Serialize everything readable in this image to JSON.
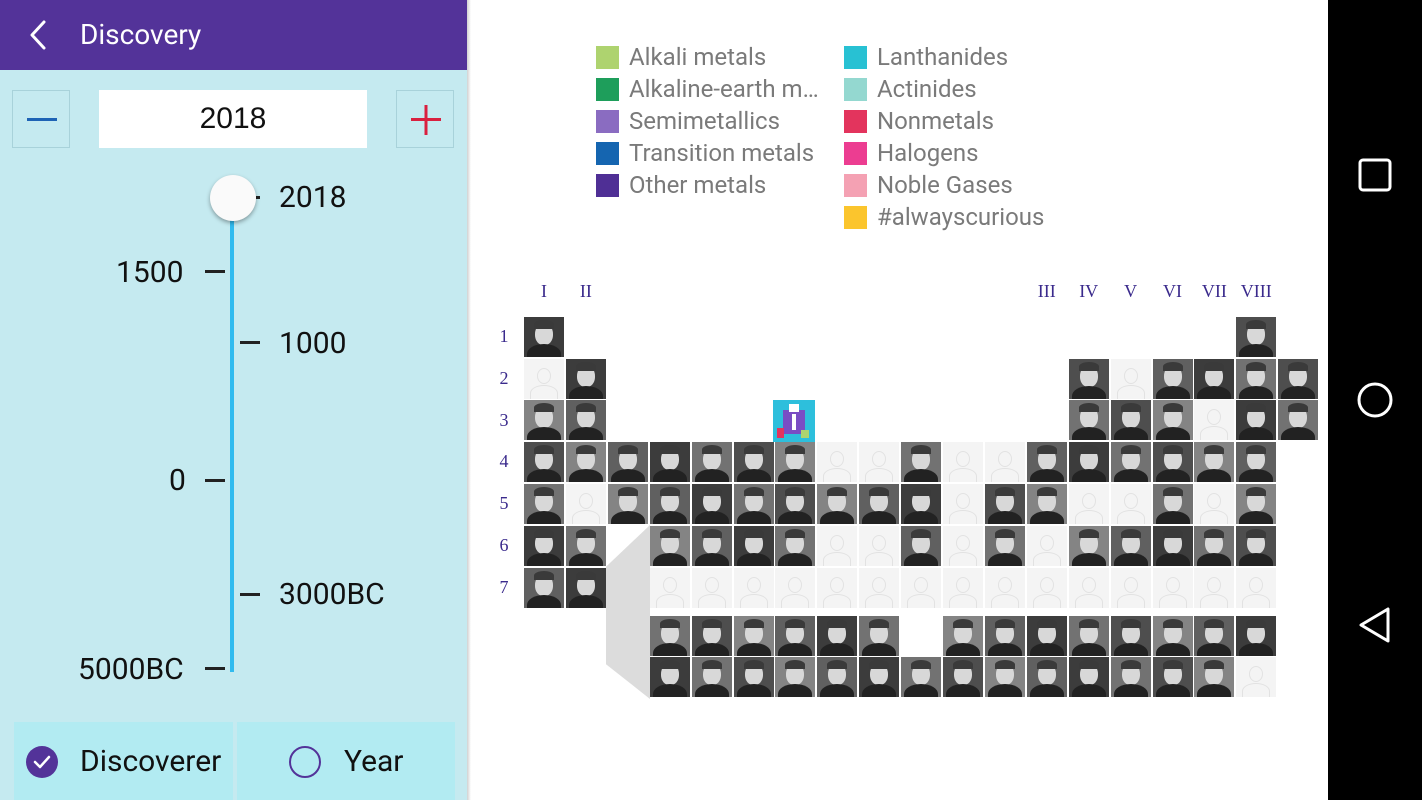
{
  "appbar": {
    "title": "Discovery"
  },
  "year_stepper": {
    "value": "2018"
  },
  "timeline": {
    "current_label": "2018",
    "left_ticks": [
      "1500",
      "0",
      "5000BC"
    ],
    "right_ticks": [
      "1000",
      "3000BC"
    ]
  },
  "bottom_options": {
    "discoverer_label": "Discoverer",
    "year_label": "Year",
    "selected": "Discoverer"
  },
  "legend": [
    {
      "label": "Alkali metals",
      "color": "#aed36f"
    },
    {
      "label": "Alkaline-earth m…",
      "color": "#1e9e5b"
    },
    {
      "label": "Semimetallics",
      "color": "#8a6cc1"
    },
    {
      "label": "Transition metals",
      "color": "#1565b0"
    },
    {
      "label": "Other metals",
      "color": "#4f2f95"
    },
    {
      "label": "Lanthanides",
      "color": "#28c1d3"
    },
    {
      "label": "Actinides",
      "color": "#94d8d0"
    },
    {
      "label": "Nonmetals",
      "color": "#e3345d"
    },
    {
      "label": "Halogens",
      "color": "#ec3d91"
    },
    {
      "label": "Noble Gases",
      "color": "#f4a1b3"
    },
    {
      "label": "#alwayscurious",
      "color": "#fbc52d"
    }
  ],
  "groups": [
    "I",
    "II",
    "III",
    "IV",
    "V",
    "VI",
    "VII",
    "VIII"
  ],
  "periods": [
    "1",
    "2",
    "3",
    "4",
    "5",
    "6",
    "7"
  ],
  "grid": {
    "rows": [
      "P                P",
      "BP           PBPPPP",
      "PP     S     PPPBPP",
      "PPPPPPPBBPBBPPPPPP",
      "PBPPPPPPPPBPPBBPBP",
      "PP PPPPBBPBPBPPPPP",
      "PP BBBBBBBBBBBBBBB",
      "   PPPPPPWPPPPPPPP",
      "   PPPPPPPPPPPPPPB"
    ]
  },
  "navbar": {
    "icons": [
      "recents-icon",
      "home-icon",
      "back-icon"
    ]
  }
}
